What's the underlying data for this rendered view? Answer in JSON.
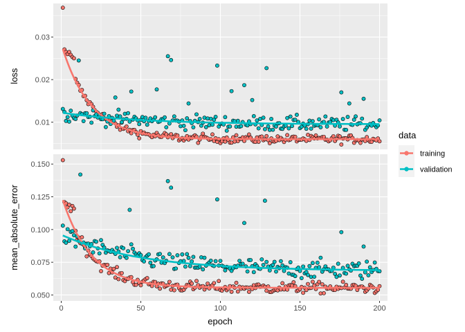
{
  "chart_data": {
    "type": "scatter",
    "xlabel": "epoch",
    "x_ticks": [
      0,
      50,
      100,
      150,
      200
    ],
    "xlim": [
      -5,
      205
    ],
    "legend": {
      "title": "data",
      "placement": "right",
      "entries": [
        {
          "label": "training",
          "color": "#F8766D"
        },
        {
          "label": "validation",
          "color": "#00BFC4"
        }
      ]
    },
    "panels": [
      {
        "ylabel": "loss",
        "ylim": [
          0.0036,
          0.0379
        ],
        "y_ticks": [
          0.01,
          0.02,
          0.03
        ],
        "y_tick_labels": [
          "0.01",
          "0.02",
          "0.03"
        ],
        "series": [
          {
            "name": "training",
            "color": "#F8766D",
            "fit_start": 0.0272,
            "fit_end": 0.006,
            "fit_rate": 0.055,
            "first_points": [
              [
                1,
                0.0369
              ],
              [
                2,
                0.0271
              ],
              [
                3,
                0.0265
              ],
              [
                4,
                0.026
              ],
              [
                5,
                0.0265
              ],
              [
                6,
                0.0258
              ],
              [
                7,
                0.0253
              ],
              [
                8,
                0.025
              ]
            ],
            "noise": 0.0007,
            "n": 200
          },
          {
            "name": "validation",
            "color": "#00BFC4",
            "fit_start": 0.0122,
            "fit_end": 0.0095,
            "fit_rate": 0.02,
            "outliers": [
              [
                11,
                0.0245
              ],
              [
                34,
                0.0158
              ],
              [
                44,
                0.0172
              ],
              [
                60,
                0.0177
              ],
              [
                67,
                0.0255
              ],
              [
                69,
                0.0246
              ],
              [
                80,
                0.0144
              ],
              [
                98,
                0.0233
              ],
              [
                107,
                0.0173
              ],
              [
                115,
                0.0187
              ],
              [
                120,
                0.0152
              ],
              [
                129,
                0.0227
              ],
              [
                176,
                0.017
              ],
              [
                181,
                0.0144
              ],
              [
                190,
                0.0155
              ]
            ],
            "noise": 0.0012,
            "n": 200
          }
        ]
      },
      {
        "ylabel": "mean_absolute_error",
        "ylim": [
          0.0455,
          0.1575
        ],
        "y_ticks": [
          0.05,
          0.075,
          0.1,
          0.125,
          0.15
        ],
        "y_tick_labels": [
          "0.050",
          "0.075",
          "0.100",
          "0.125",
          "0.150"
        ],
        "series": [
          {
            "name": "training",
            "color": "#F8766D",
            "fit_start": 0.1225,
            "fit_end": 0.0555,
            "fit_rate": 0.055,
            "first_points": [
              [
                1,
                0.153
              ],
              [
                2,
                0.121
              ],
              [
                3,
                0.12
              ],
              [
                4,
                0.117
              ],
              [
                5,
                0.119
              ],
              [
                6,
                0.114
              ],
              [
                7,
                0.118
              ],
              [
                8,
                0.116
              ]
            ],
            "noise": 0.003,
            "n": 200
          },
          {
            "name": "validation",
            "color": "#00BFC4",
            "fit_start": 0.0955,
            "fit_end": 0.0685,
            "fit_rate": 0.02,
            "outliers": [
              [
                12,
                0.142
              ],
              [
                43,
                0.115
              ],
              [
                67,
                0.137
              ],
              [
                69,
                0.132
              ],
              [
                98,
                0.123
              ],
              [
                115,
                0.105
              ],
              [
                128,
                0.122
              ],
              [
                176,
                0.098
              ],
              [
                190,
                0.087
              ]
            ],
            "noise": 0.005,
            "n": 200
          }
        ]
      }
    ]
  }
}
